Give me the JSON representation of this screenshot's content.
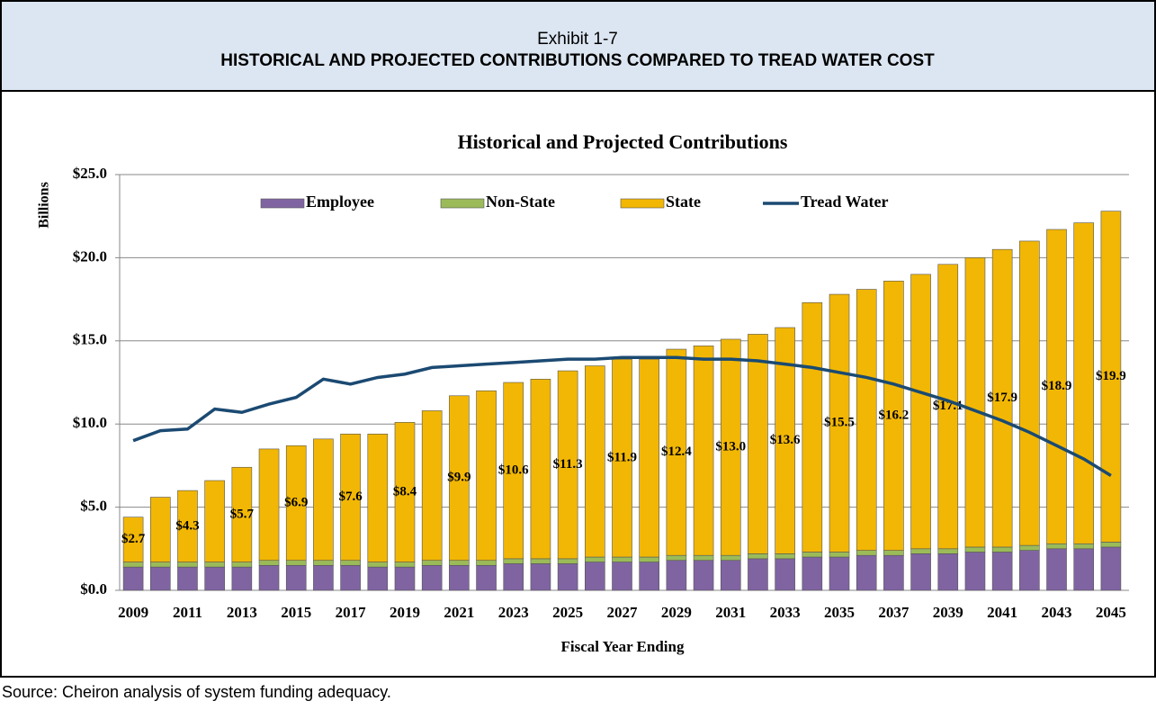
{
  "header": {
    "exhibit": "Exhibit 1-7",
    "title": "HISTORICAL AND PROJECTED CONTRIBUTIONS COMPARED TO TREAD WATER COST"
  },
  "chart_data": {
    "type": "bar",
    "stacked": true,
    "title": "Historical and Projected Contributions",
    "xlabel": "Fiscal Year Ending",
    "ylabel": "Billions",
    "categories": [
      "2009",
      null,
      "2011",
      null,
      "2013",
      null,
      "2015",
      null,
      "2017",
      null,
      "2019",
      null,
      "2021",
      null,
      "2023",
      null,
      "2025",
      null,
      "2027",
      null,
      "2029",
      null,
      "2031",
      null,
      "2033",
      null,
      "2035",
      null,
      "2037",
      null,
      "2039",
      null,
      "2041",
      null,
      "2043",
      null,
      "2045"
    ],
    "ylim": [
      0,
      25
    ],
    "yticks": [
      {
        "value": 0,
        "label": "$0.0"
      },
      {
        "value": 5,
        "label": "$5.0"
      },
      {
        "value": 10,
        "label": "$10.0"
      },
      {
        "value": 15,
        "label": "$15.0"
      },
      {
        "value": 20,
        "label": "$20.0"
      },
      {
        "value": 25,
        "label": "$25.0"
      }
    ],
    "grid": true,
    "legend": "top",
    "series": [
      {
        "name": "Employee",
        "color": "#8064a2",
        "values": [
          1.4,
          1.4,
          1.4,
          1.4,
          1.4,
          1.5,
          1.5,
          1.5,
          1.5,
          1.4,
          1.4,
          1.5,
          1.5,
          1.5,
          1.6,
          1.6,
          1.6,
          1.7,
          1.7,
          1.7,
          1.8,
          1.8,
          1.8,
          1.9,
          1.9,
          2.0,
          2.0,
          2.1,
          2.1,
          2.2,
          2.2,
          2.3,
          2.3,
          2.4,
          2.5,
          2.5,
          2.6
        ]
      },
      {
        "name": "Non-State",
        "color": "#9bbb59",
        "values": [
          0.3,
          0.3,
          0.3,
          0.3,
          0.3,
          0.3,
          0.3,
          0.3,
          0.3,
          0.3,
          0.3,
          0.3,
          0.3,
          0.3,
          0.3,
          0.3,
          0.3,
          0.3,
          0.3,
          0.3,
          0.3,
          0.3,
          0.3,
          0.3,
          0.3,
          0.3,
          0.3,
          0.3,
          0.3,
          0.3,
          0.3,
          0.3,
          0.3,
          0.3,
          0.3,
          0.3,
          0.3
        ]
      },
      {
        "name": "State",
        "color": "#f2b705",
        "values": [
          2.7,
          3.9,
          4.3,
          4.9,
          5.7,
          6.7,
          6.9,
          7.3,
          7.6,
          7.7,
          8.4,
          9.0,
          9.9,
          10.2,
          10.6,
          10.8,
          11.3,
          11.5,
          11.9,
          11.9,
          12.4,
          12.6,
          13.0,
          13.2,
          13.6,
          15.0,
          15.5,
          15.7,
          16.2,
          16.5,
          17.1,
          17.4,
          17.9,
          18.3,
          18.9,
          19.3,
          19.9
        ],
        "value_labels": [
          "$2.7",
          null,
          "$4.3",
          null,
          "$5.7",
          null,
          "$6.9",
          null,
          "$7.6",
          null,
          "$8.4",
          null,
          "$9.9",
          null,
          "$10.6",
          null,
          "$11.3",
          null,
          "$11.9",
          null,
          "$12.4",
          null,
          "$13.0",
          null,
          "$13.6",
          null,
          "$15.5",
          null,
          "$16.2",
          null,
          "$17.1",
          null,
          "$17.9",
          null,
          "$18.9",
          null,
          "$19.9"
        ]
      },
      {
        "name": "Tread Water",
        "type": "line",
        "color": "#1b4a72",
        "values": [
          9.0,
          9.6,
          9.7,
          10.9,
          10.7,
          11.2,
          11.6,
          12.7,
          12.4,
          12.8,
          13.0,
          13.4,
          13.5,
          13.6,
          13.7,
          13.8,
          13.9,
          13.9,
          14.0,
          14.0,
          14.0,
          13.9,
          13.9,
          13.8,
          13.6,
          13.4,
          13.1,
          12.8,
          12.4,
          11.9,
          11.4,
          10.8,
          10.2,
          9.5,
          8.7,
          7.9,
          6.9
        ]
      }
    ]
  },
  "source": "Source: Cheiron analysis of system funding adequacy."
}
